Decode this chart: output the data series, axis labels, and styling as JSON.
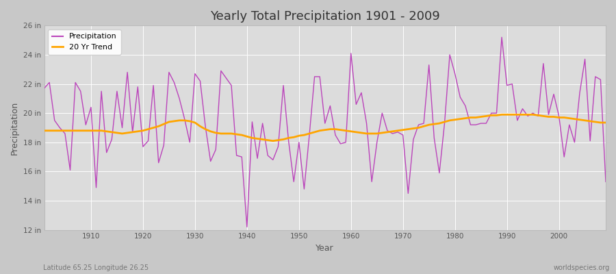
{
  "title": "Yearly Total Precipitation 1901 - 2009",
  "xlabel": "Year",
  "ylabel": "Precipitation",
  "subtitle_left": "Latitude 65.25 Longitude 26.25",
  "subtitle_right": "worldspecies.org",
  "line_color": "#BB44BB",
  "trend_color": "#FFA500",
  "fig_bg_color": "#C8C8C8",
  "plot_bg_color": "#DCDCDC",
  "ylim": [
    12,
    26
  ],
  "yticks": [
    12,
    14,
    16,
    18,
    20,
    22,
    24,
    26
  ],
  "ytick_labels": [
    "12 in",
    "14 in",
    "16 in",
    "18 in",
    "20 in",
    "22 in",
    "24 in",
    "26 in"
  ],
  "xlim": [
    1901,
    2009
  ],
  "xticks": [
    1910,
    1920,
    1930,
    1940,
    1950,
    1960,
    1970,
    1980,
    1990,
    2000
  ],
  "years": [
    1901,
    1902,
    1903,
    1904,
    1905,
    1906,
    1907,
    1908,
    1909,
    1910,
    1911,
    1912,
    1913,
    1914,
    1915,
    1916,
    1917,
    1918,
    1919,
    1920,
    1921,
    1922,
    1923,
    1924,
    1925,
    1926,
    1927,
    1928,
    1929,
    1930,
    1931,
    1932,
    1933,
    1934,
    1935,
    1936,
    1937,
    1938,
    1939,
    1940,
    1941,
    1942,
    1943,
    1944,
    1945,
    1946,
    1947,
    1948,
    1949,
    1950,
    1951,
    1952,
    1953,
    1954,
    1955,
    1956,
    1957,
    1958,
    1959,
    1960,
    1961,
    1962,
    1963,
    1964,
    1965,
    1966,
    1967,
    1968,
    1969,
    1970,
    1971,
    1972,
    1973,
    1974,
    1975,
    1976,
    1977,
    1978,
    1979,
    1980,
    1981,
    1982,
    1983,
    1984,
    1985,
    1986,
    1987,
    1988,
    1989,
    1990,
    1991,
    1992,
    1993,
    1994,
    1995,
    1996,
    1997,
    1998,
    1999,
    2000,
    2001,
    2002,
    2003,
    2004,
    2005,
    2006,
    2007,
    2008,
    2009
  ],
  "precipitation": [
    21.7,
    22.1,
    19.5,
    19.0,
    18.6,
    16.1,
    22.1,
    21.5,
    19.2,
    20.4,
    14.9,
    21.5,
    17.3,
    18.2,
    21.5,
    19.0,
    22.8,
    18.7,
    21.8,
    17.7,
    18.1,
    21.9,
    16.6,
    17.8,
    22.8,
    22.1,
    21.0,
    19.6,
    18.0,
    22.7,
    22.2,
    19.1,
    16.7,
    17.5,
    22.9,
    22.4,
    21.9,
    17.1,
    17.0,
    12.2,
    19.4,
    16.9,
    19.3,
    17.1,
    16.8,
    17.7,
    21.9,
    18.1,
    15.3,
    18.0,
    14.8,
    18.5,
    22.5,
    22.5,
    19.3,
    20.5,
    18.5,
    17.9,
    18.0,
    24.1,
    20.6,
    21.4,
    19.3,
    15.3,
    18.0,
    20.0,
    18.8,
    18.6,
    18.7,
    18.5,
    14.5,
    18.2,
    19.2,
    19.3,
    23.3,
    18.3,
    15.9,
    19.3,
    24.0,
    22.7,
    21.1,
    20.5,
    19.2,
    19.2,
    19.3,
    19.3,
    20.0,
    20.0,
    25.2,
    21.9,
    22.0,
    19.5,
    20.3,
    19.8,
    20.0,
    19.8,
    23.4,
    19.9,
    21.3,
    19.8,
    17.0,
    19.2,
    18.0,
    21.4,
    23.7,
    18.1,
    22.5,
    22.3,
    15.3
  ],
  "trend": [
    18.8,
    18.8,
    18.8,
    18.8,
    18.8,
    18.8,
    18.8,
    18.8,
    18.8,
    18.8,
    18.8,
    18.8,
    18.75,
    18.7,
    18.65,
    18.6,
    18.65,
    18.7,
    18.75,
    18.8,
    18.9,
    19.0,
    19.1,
    19.25,
    19.4,
    19.45,
    19.5,
    19.5,
    19.45,
    19.35,
    19.1,
    18.9,
    18.75,
    18.65,
    18.6,
    18.6,
    18.6,
    18.55,
    18.5,
    18.4,
    18.3,
    18.25,
    18.2,
    18.15,
    18.1,
    18.15,
    18.2,
    18.3,
    18.35,
    18.45,
    18.5,
    18.6,
    18.7,
    18.8,
    18.85,
    18.9,
    18.9,
    18.85,
    18.8,
    18.75,
    18.7,
    18.65,
    18.6,
    18.6,
    18.6,
    18.65,
    18.7,
    18.75,
    18.8,
    18.85,
    18.9,
    18.95,
    19.0,
    19.1,
    19.2,
    19.25,
    19.3,
    19.4,
    19.5,
    19.55,
    19.6,
    19.65,
    19.7,
    19.7,
    19.75,
    19.8,
    19.85,
    19.85,
    19.9,
    19.9,
    19.9,
    19.9,
    19.9,
    19.9,
    19.9,
    19.85,
    19.8,
    19.75,
    19.75,
    19.7,
    19.7,
    19.65,
    19.6,
    19.55,
    19.5,
    19.45,
    19.4,
    19.35,
    19.35
  ]
}
